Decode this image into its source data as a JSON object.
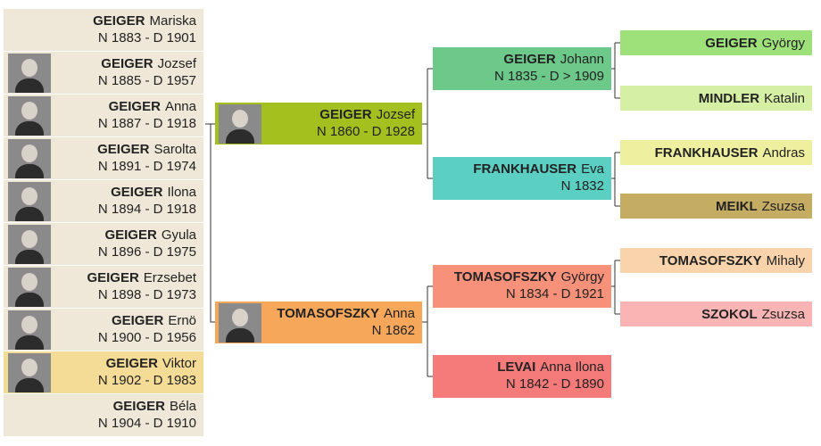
{
  "children": [
    {
      "surname": "GEIGER",
      "given": "Mariska",
      "dates": "N 1883 - D 1901"
    },
    {
      "surname": "GEIGER",
      "given": "Jozsef",
      "dates": "N 1885 - D 1957"
    },
    {
      "surname": "GEIGER",
      "given": "Anna",
      "dates": "N 1887 - D 1918"
    },
    {
      "surname": "GEIGER",
      "given": "Sarolta",
      "dates": "N 1891 - D 1974"
    },
    {
      "surname": "GEIGER",
      "given": "Ilona",
      "dates": "N 1894 - D 1918"
    },
    {
      "surname": "GEIGER",
      "given": "Gyula",
      "dates": "N 1896 - D 1975"
    },
    {
      "surname": "GEIGER",
      "given": "Erzsebet",
      "dates": "N 1898 - D 1973"
    },
    {
      "surname": "GEIGER",
      "given": "Ernö",
      "dates": "N 1900 - D 1956"
    },
    {
      "surname": "GEIGER",
      "given": "Viktor",
      "dates": "N 1902 - D 1983"
    },
    {
      "surname": "GEIGER",
      "given": "Béla",
      "dates": "N 1904 - D 1910"
    }
  ],
  "parents": [
    {
      "surname": "GEIGER",
      "given": "Jozsef",
      "dates": "N 1860 - D 1928"
    },
    {
      "surname": "TOMASOFSZKY",
      "given": "Anna",
      "dates": "N 1862"
    }
  ],
  "grandparents": [
    {
      "surname": "GEIGER",
      "given": "Johann",
      "dates": "N 1835 - D > 1909"
    },
    {
      "surname": "FRANKHAUSER",
      "given": "Eva",
      "dates": "N 1832"
    },
    {
      "surname": "TOMASOFSZKY",
      "given": "György",
      "dates": "N 1834 - D 1921"
    },
    {
      "surname": "LEVAI",
      "given": "Anna Ilona",
      "dates": "N 1842 - D 1890"
    }
  ],
  "great_grandparents": [
    {
      "surname": "GEIGER",
      "given": "György"
    },
    {
      "surname": "MINDLER",
      "given": "Katalin"
    },
    {
      "surname": "FRANKHAUSER",
      "given": "Andras"
    },
    {
      "surname": "MEIKL",
      "given": "Zsuzsa"
    },
    {
      "surname": "TOMASOFSZKY",
      "given": "Mihaly"
    },
    {
      "surname": "SZOKOL",
      "given": "Zsuzsa"
    }
  ]
}
